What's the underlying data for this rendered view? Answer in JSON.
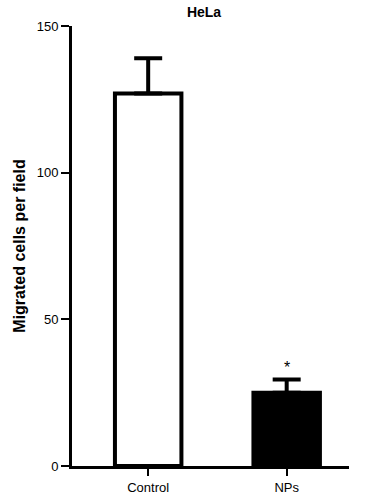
{
  "chart_data": {
    "type": "bar",
    "title": "HeLa",
    "y_label": "Migrated cells per field",
    "categories": [
      "Control",
      "NPs"
    ],
    "values": [
      127,
      25
    ],
    "errors": [
      12,
      4.5
    ],
    "colors": [
      "#ffffff",
      "#000000"
    ],
    "ylim": [
      0,
      150
    ],
    "yticks": [
      0,
      50,
      100,
      150
    ],
    "grid": false,
    "annotations": [
      {
        "text": "*",
        "category": "NPs"
      }
    ]
  }
}
